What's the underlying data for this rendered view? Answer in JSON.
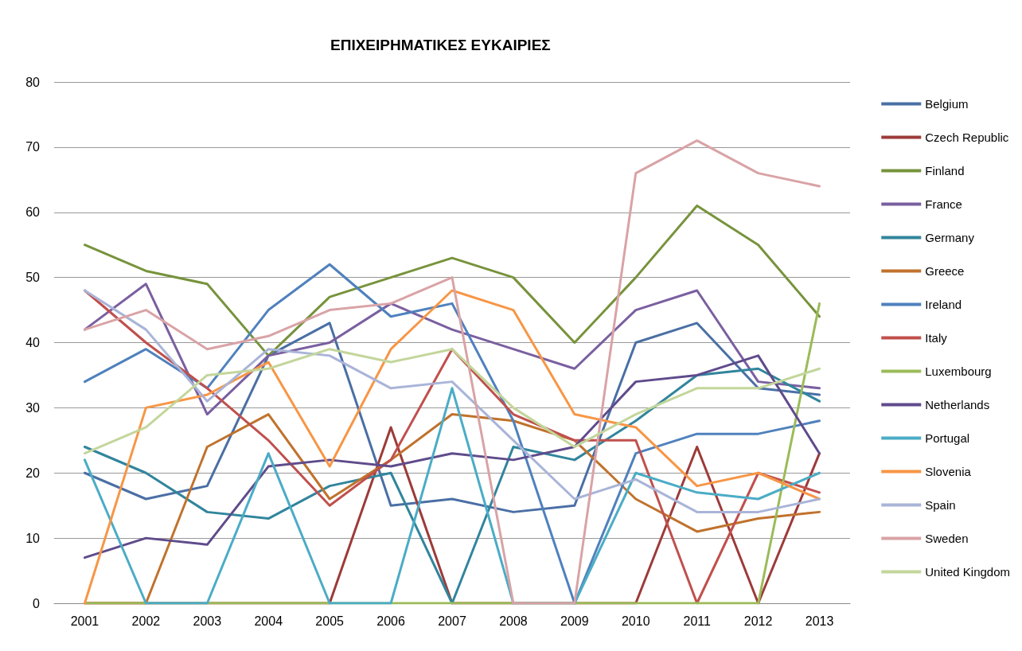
{
  "chart_data": {
    "type": "line",
    "title": "ΕΠΙΧΕΙΡΗΜΑΤΙΚΕΣ ΕΥΚΑΙΡΙΕΣ",
    "categories": [
      "2001",
      "2002",
      "2003",
      "2004",
      "2005",
      "2006",
      "2007",
      "2008",
      "2009",
      "2010",
      "2011",
      "2012",
      "2013"
    ],
    "ylim": [
      0,
      80
    ],
    "yticks": [
      0,
      10,
      20,
      30,
      40,
      50,
      60,
      70,
      80
    ],
    "grid": "y",
    "legend": "right",
    "marker": "none",
    "line_style": "solid",
    "series": [
      {
        "name": "Belgium",
        "color": "#4a6fa5",
        "values": [
          20,
          16,
          18,
          38,
          43,
          15,
          16,
          14,
          15,
          40,
          43,
          33,
          32
        ]
      },
      {
        "name": "Czech Republic",
        "color": "#9c3b39",
        "values": [
          0,
          0,
          0,
          0,
          0,
          27,
          0,
          0,
          0,
          0,
          24,
          0,
          23
        ]
      },
      {
        "name": "Finland",
        "color": "#77933c",
        "values": [
          55,
          51,
          49,
          38,
          47,
          50,
          53,
          50,
          40,
          50,
          61,
          55,
          44
        ]
      },
      {
        "name": "France",
        "color": "#7a5fa0",
        "values": [
          42,
          49,
          29,
          38,
          40,
          46,
          42,
          39,
          36,
          45,
          48,
          34,
          33
        ]
      },
      {
        "name": "Germany",
        "color": "#31859c",
        "values": [
          24,
          20,
          14,
          13,
          18,
          20,
          0,
          24,
          22,
          28,
          35,
          36,
          31
        ]
      },
      {
        "name": "Greece",
        "color": "#c0722d",
        "values": [
          0,
          0,
          24,
          29,
          16,
          22,
          29,
          28,
          25,
          16,
          11,
          13,
          14
        ]
      },
      {
        "name": "Ireland",
        "color": "#4f81bd",
        "values": [
          34,
          39,
          33,
          45,
          52,
          44,
          46,
          28,
          0,
          23,
          26,
          26,
          28
        ]
      },
      {
        "name": "Italy",
        "color": "#c0504d",
        "values": [
          48,
          40,
          33,
          25,
          15,
          22,
          39,
          29,
          25,
          25,
          0,
          20,
          17
        ]
      },
      {
        "name": "Luxembourg",
        "color": "#9bbb59",
        "values": [
          0,
          0,
          0,
          0,
          0,
          0,
          0,
          0,
          0,
          0,
          0,
          0,
          46
        ]
      },
      {
        "name": "Netherlands",
        "color": "#5f4b8b",
        "values": [
          7,
          10,
          9,
          21,
          22,
          21,
          23,
          22,
          24,
          34,
          35,
          38,
          23
        ]
      },
      {
        "name": "Portugal",
        "color": "#4bacc6",
        "values": [
          22,
          0,
          0,
          23,
          0,
          0,
          33,
          0,
          0,
          20,
          17,
          16,
          20
        ]
      },
      {
        "name": "Slovenia",
        "color": "#f79646",
        "values": [
          0,
          30,
          32,
          37,
          21,
          39,
          48,
          45,
          29,
          27,
          18,
          20,
          16
        ]
      },
      {
        "name": "Spain",
        "color": "#a9b4d8",
        "values": [
          48,
          42,
          31,
          39,
          38,
          33,
          34,
          25,
          16,
          19,
          14,
          14,
          16
        ]
      },
      {
        "name": "Sweden",
        "color": "#d9a3a6",
        "values": [
          42,
          45,
          39,
          41,
          45,
          46,
          50,
          0,
          0,
          66,
          71,
          66,
          64
        ]
      },
      {
        "name": "United Kingdom",
        "color": "#c3d69b",
        "values": [
          23,
          27,
          35,
          36,
          39,
          37,
          39,
          30,
          24,
          29,
          33,
          33,
          36
        ]
      }
    ]
  }
}
